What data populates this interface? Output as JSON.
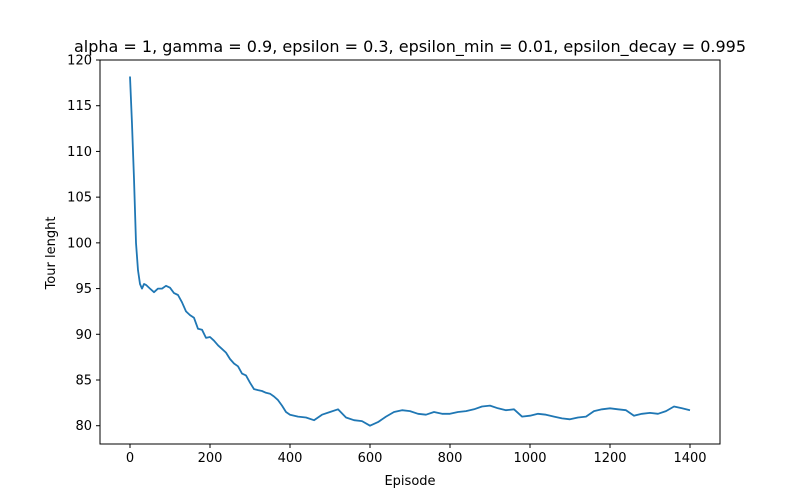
{
  "chart_data": {
    "type": "line",
    "title": "alpha = 1, gamma = 0.9, epsilon = 0.3, epsilon_min = 0.01, epsilon_decay = 0.995",
    "xlabel": "Episode",
    "ylabel": "Tour lenght",
    "xlim": [
      -75,
      1475
    ],
    "ylim": [
      78,
      120
    ],
    "x_ticks": [
      0,
      200,
      400,
      600,
      800,
      1000,
      1200,
      1400
    ],
    "y_ticks": [
      80,
      85,
      90,
      95,
      100,
      105,
      110,
      115,
      120
    ],
    "grid": false,
    "legend": "none",
    "series": [
      {
        "color": "#1f77b4",
        "x": [
          0,
          5,
          10,
          15,
          20,
          25,
          30,
          35,
          40,
          50,
          60,
          70,
          80,
          90,
          100,
          110,
          120,
          130,
          140,
          150,
          160,
          170,
          180,
          190,
          200,
          210,
          220,
          230,
          240,
          250,
          260,
          270,
          280,
          290,
          300,
          310,
          320,
          330,
          340,
          350,
          360,
          370,
          380,
          390,
          400,
          420,
          440,
          460,
          480,
          500,
          520,
          540,
          560,
          580,
          600,
          620,
          640,
          660,
          680,
          700,
          720,
          740,
          760,
          780,
          800,
          820,
          840,
          860,
          880,
          900,
          920,
          940,
          960,
          980,
          1000,
          1020,
          1040,
          1060,
          1080,
          1100,
          1120,
          1140,
          1160,
          1180,
          1200,
          1220,
          1240,
          1260,
          1280,
          1300,
          1320,
          1340,
          1360,
          1380,
          1400
        ],
        "y": [
          118.2,
          113,
          107,
          100,
          97,
          95.5,
          95,
          95.5,
          95.4,
          95,
          94.6,
          95,
          95,
          95.3,
          95.1,
          94.5,
          94.3,
          93.5,
          92.5,
          92.1,
          91.8,
          90.6,
          90.5,
          89.6,
          89.7,
          89.3,
          88.8,
          88.4,
          88,
          87.3,
          86.8,
          86.5,
          85.7,
          85.5,
          84.7,
          84,
          83.9,
          83.8,
          83.6,
          83.5,
          83.2,
          82.8,
          82.2,
          81.5,
          81.2,
          81,
          80.9,
          80.6,
          81.2,
          81.5,
          81.8,
          80.9,
          80.6,
          80.5,
          80,
          80.4,
          81,
          81.5,
          81.7,
          81.6,
          81.3,
          81.2,
          81.5,
          81.3,
          81.3,
          81.5,
          81.6,
          81.8,
          82.1,
          82.2,
          81.9,
          81.7,
          81.8,
          81.0,
          81.1,
          81.3,
          81.2,
          81.0,
          80.8,
          80.7,
          80.9,
          81.0,
          81.6,
          81.8,
          81.9,
          81.8,
          81.7,
          81.1,
          81.3,
          81.4,
          81.3,
          81.6,
          82.1,
          81.9,
          81.7
        ]
      }
    ]
  }
}
